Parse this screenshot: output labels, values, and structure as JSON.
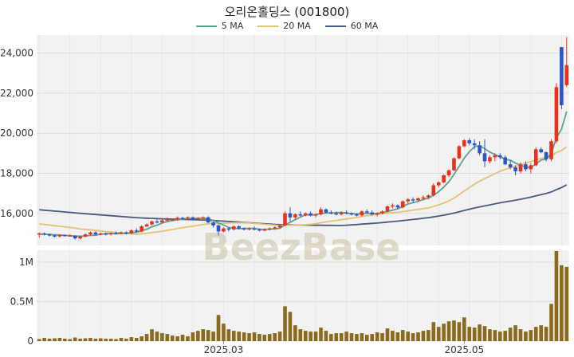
{
  "title": "오리온홀딩스 (001800)",
  "watermark": "BeezBase",
  "colors": {
    "up": "#e8331c",
    "down": "#2e55c8",
    "ma5": "#5aa58f",
    "ma20": "#e1c374",
    "ma60": "#4a5a80",
    "volume": "#8b6a1e",
    "grid": "#e6e6e6",
    "panel_bg": "#f2f2f2"
  },
  "chart_data": {
    "type": "candlestick",
    "legend": [
      {
        "name": "5 MA",
        "color": "#5aa58f"
      },
      {
        "name": "20 MA",
        "color": "#e1c374"
      },
      {
        "name": "60 MA",
        "color": "#4a5a80"
      }
    ],
    "legend_position": "top-center",
    "price_axis": {
      "ylim": [
        14400,
        24900
      ],
      "ticks": [
        16000,
        18000,
        20000,
        22000,
        24000
      ],
      "tick_labels": [
        "16,000",
        "18,000",
        "20,000",
        "22,000",
        "24,000"
      ]
    },
    "volume_axis": {
      "ylim": [
        0,
        1150000
      ],
      "ticks": [
        0,
        500000,
        1000000
      ],
      "tick_labels": [
        "0",
        "0.5M",
        "1M"
      ]
    },
    "x_labels": [
      {
        "index": 36,
        "label": "2025.03"
      },
      {
        "index": 83,
        "label": "2025.05"
      }
    ],
    "grid": true,
    "candles": [
      [
        14950,
        15050,
        14800,
        15000,
        25000
      ],
      [
        15000,
        15050,
        14900,
        14950,
        40000
      ],
      [
        14950,
        15000,
        14850,
        14900,
        30000
      ],
      [
        14900,
        14950,
        14800,
        14850,
        35000
      ],
      [
        14850,
        14950,
        14800,
        14920,
        40000
      ],
      [
        14920,
        14950,
        14850,
        14880,
        30000
      ],
      [
        14880,
        14950,
        14850,
        14900,
        25000
      ],
      [
        14900,
        14900,
        14700,
        14750,
        45000
      ],
      [
        14750,
        14900,
        14700,
        14850,
        30000
      ],
      [
        14850,
        15000,
        14800,
        14950,
        35000
      ],
      [
        14950,
        15100,
        14900,
        15050,
        40000
      ],
      [
        15050,
        15100,
        14900,
        14950,
        30000
      ],
      [
        14950,
        15050,
        14900,
        15000,
        35000
      ],
      [
        15000,
        15050,
        14900,
        14950,
        30000
      ],
      [
        14950,
        15050,
        14900,
        15020,
        30000
      ],
      [
        15020,
        15100,
        14950,
        15000,
        25000
      ],
      [
        15000,
        15100,
        14950,
        15050,
        40000
      ],
      [
        15050,
        15100,
        14950,
        15000,
        30000
      ],
      [
        15000,
        15200,
        14950,
        15150,
        50000
      ],
      [
        15150,
        15250,
        15050,
        15100,
        40000
      ],
      [
        15100,
        15400,
        15050,
        15350,
        60000
      ],
      [
        15350,
        15500,
        15300,
        15450,
        90000
      ],
      [
        15450,
        15650,
        15400,
        15600,
        150000
      ],
      [
        15600,
        15700,
        15500,
        15550,
        120000
      ],
      [
        15550,
        15700,
        15500,
        15650,
        100000
      ],
      [
        15650,
        15800,
        15600,
        15700,
        90000
      ],
      [
        15700,
        15750,
        15650,
        15700,
        70000
      ],
      [
        15700,
        15850,
        15650,
        15780,
        60000
      ],
      [
        15780,
        15820,
        15700,
        15750,
        80000
      ],
      [
        15750,
        15850,
        15700,
        15800,
        60000
      ],
      [
        15800,
        15850,
        15700,
        15720,
        110000
      ],
      [
        15720,
        15800,
        15650,
        15750,
        130000
      ],
      [
        15750,
        15850,
        15700,
        15800,
        150000
      ],
      [
        15800,
        15850,
        15500,
        15550,
        140000
      ],
      [
        15550,
        15600,
        15300,
        15400,
        120000
      ],
      [
        15400,
        15450,
        14900,
        15100,
        330000
      ],
      [
        15100,
        15300,
        15050,
        15250,
        220000
      ],
      [
        15250,
        15300,
        15100,
        15200,
        150000
      ],
      [
        15200,
        15400,
        15150,
        15350,
        130000
      ],
      [
        15350,
        15400,
        15200,
        15250,
        120000
      ],
      [
        15250,
        15300,
        15150,
        15200,
        110000
      ],
      [
        15200,
        15300,
        15150,
        15250,
        100000
      ],
      [
        15250,
        15350,
        15150,
        15200,
        110000
      ],
      [
        15200,
        15250,
        15100,
        15150,
        90000
      ],
      [
        15150,
        15250,
        15100,
        15200,
        80000
      ],
      [
        15200,
        15300,
        15150,
        15250,
        90000
      ],
      [
        15250,
        15350,
        15200,
        15300,
        100000
      ],
      [
        15300,
        15450,
        15250,
        15400,
        120000
      ],
      [
        15400,
        16100,
        15350,
        16000,
        440000
      ],
      [
        16000,
        16300,
        15600,
        15800,
        370000
      ],
      [
        15800,
        16000,
        15700,
        15950,
        200000
      ],
      [
        15950,
        16100,
        15850,
        15900,
        150000
      ],
      [
        15900,
        16050,
        15850,
        16000,
        130000
      ],
      [
        16000,
        16100,
        15850,
        15900,
        120000
      ],
      [
        15900,
        16000,
        15800,
        15950,
        120000
      ],
      [
        15950,
        16300,
        15900,
        16200,
        170000
      ],
      [
        16200,
        16250,
        16000,
        16050,
        130000
      ],
      [
        16050,
        16150,
        15950,
        16000,
        90000
      ],
      [
        16000,
        16100,
        15900,
        15950,
        100000
      ],
      [
        15950,
        16100,
        15900,
        16050,
        100000
      ],
      [
        16050,
        16150,
        15950,
        16000,
        120000
      ],
      [
        16000,
        16050,
        15900,
        15950,
        100000
      ],
      [
        15950,
        16000,
        15850,
        15900,
        90000
      ],
      [
        15900,
        16150,
        15850,
        16100,
        100000
      ],
      [
        16100,
        16200,
        16000,
        16050,
        80000
      ],
      [
        16050,
        16150,
        15900,
        15950,
        90000
      ],
      [
        15950,
        16050,
        15850,
        16000,
        110000
      ],
      [
        16000,
        16150,
        15950,
        16100,
        100000
      ],
      [
        16100,
        16400,
        16050,
        16350,
        160000
      ],
      [
        16350,
        16500,
        16250,
        16400,
        130000
      ],
      [
        16400,
        16450,
        16200,
        16300,
        110000
      ],
      [
        16300,
        16650,
        16250,
        16600,
        140000
      ],
      [
        16600,
        16750,
        16500,
        16700,
        120000
      ],
      [
        16700,
        16800,
        16550,
        16650,
        100000
      ],
      [
        16650,
        16800,
        16600,
        16750,
        110000
      ],
      [
        16750,
        16900,
        16650,
        16800,
        130000
      ],
      [
        16800,
        16950,
        16700,
        16900,
        140000
      ],
      [
        16900,
        17500,
        16850,
        17400,
        240000
      ],
      [
        17400,
        17600,
        17300,
        17550,
        180000
      ],
      [
        17550,
        17950,
        17500,
        17900,
        220000
      ],
      [
        17900,
        18200,
        17800,
        18150,
        250000
      ],
      [
        18150,
        18800,
        18100,
        18750,
        260000
      ],
      [
        18750,
        19400,
        18700,
        19350,
        240000
      ],
      [
        19350,
        19700,
        19300,
        19650,
        300000
      ],
      [
        19650,
        19750,
        19400,
        19500,
        180000
      ],
      [
        19500,
        19700,
        19200,
        19400,
        170000
      ],
      [
        19400,
        19600,
        18900,
        19000,
        210000
      ],
      [
        19000,
        19700,
        18300,
        18600,
        190000
      ],
      [
        18600,
        18900,
        18500,
        18800,
        150000
      ],
      [
        18800,
        19000,
        18600,
        18900,
        140000
      ],
      [
        18900,
        19000,
        18700,
        18800,
        120000
      ],
      [
        18800,
        18900,
        18400,
        18450,
        130000
      ],
      [
        18450,
        18650,
        18200,
        18300,
        170000
      ],
      [
        18300,
        18400,
        17900,
        18100,
        200000
      ],
      [
        18100,
        18550,
        18000,
        18450,
        150000
      ],
      [
        18450,
        18600,
        18100,
        18200,
        120000
      ],
      [
        18200,
        18500,
        18000,
        18400,
        140000
      ],
      [
        18400,
        19300,
        18350,
        19200,
        180000
      ],
      [
        19200,
        19300,
        19000,
        19050,
        200000
      ],
      [
        19050,
        19100,
        18600,
        18700,
        180000
      ],
      [
        18700,
        19700,
        18600,
        19600,
        470000
      ],
      [
        19600,
        22500,
        19500,
        22300,
        1140000
      ],
      [
        24300,
        24300,
        21200,
        21400,
        960000
      ],
      [
        22400,
        24800,
        22300,
        23400,
        940000
      ]
    ],
    "ma_values_note": "moving averages computed from closes"
  }
}
